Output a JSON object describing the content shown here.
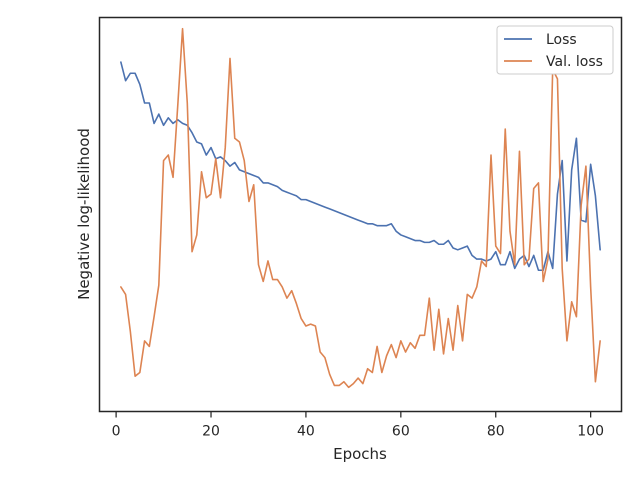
{
  "chart_data": {
    "type": "line",
    "xlabel": "Epochs",
    "ylabel": "Negative log-likelihood",
    "xlim": [
      -3.5,
      106.5
    ],
    "ylim": [
      -1.06,
      1.06
    ],
    "y_ticks_shown": false,
    "x_ticks": [
      0,
      20,
      40,
      60,
      80,
      100
    ],
    "legend_position": "upper-right",
    "grid": false,
    "series": [
      {
        "name": "Loss",
        "color": "#4c72b0",
        "x": [
          1,
          2,
          3,
          4,
          5,
          6,
          7,
          8,
          9,
          10,
          11,
          12,
          13,
          14,
          15,
          16,
          17,
          18,
          19,
          20,
          21,
          22,
          23,
          24,
          25,
          26,
          27,
          28,
          29,
          30,
          31,
          32,
          33,
          34,
          35,
          36,
          37,
          38,
          39,
          40,
          41,
          42,
          43,
          44,
          45,
          46,
          47,
          48,
          49,
          50,
          51,
          52,
          53,
          54,
          55,
          56,
          57,
          58,
          59,
          60,
          61,
          62,
          63,
          64,
          65,
          66,
          67,
          68,
          69,
          70,
          71,
          72,
          73,
          74,
          75,
          76,
          77,
          78,
          79,
          80,
          81,
          82,
          83,
          84,
          85,
          86,
          87,
          88,
          89,
          90,
          91,
          92,
          93,
          94,
          95,
          96,
          97,
          98,
          99,
          100,
          101,
          102
        ],
        "y": [
          0.82,
          0.72,
          0.76,
          0.76,
          0.7,
          0.6,
          0.6,
          0.49,
          0.54,
          0.48,
          0.52,
          0.49,
          0.51,
          0.49,
          0.48,
          0.44,
          0.39,
          0.38,
          0.32,
          0.36,
          0.3,
          0.31,
          0.29,
          0.26,
          0.28,
          0.24,
          0.23,
          0.22,
          0.21,
          0.2,
          0.17,
          0.17,
          0.16,
          0.15,
          0.13,
          0.12,
          0.11,
          0.1,
          0.08,
          0.08,
          0.07,
          0.06,
          0.05,
          0.04,
          0.03,
          0.02,
          0.01,
          0.0,
          -0.01,
          -0.02,
          -0.03,
          -0.04,
          -0.05,
          -0.05,
          -0.06,
          -0.06,
          -0.06,
          -0.05,
          -0.09,
          -0.11,
          -0.12,
          -0.13,
          -0.14,
          -0.14,
          -0.15,
          -0.15,
          -0.14,
          -0.16,
          -0.16,
          -0.14,
          -0.18,
          -0.19,
          -0.18,
          -0.17,
          -0.22,
          -0.24,
          -0.24,
          -0.25,
          -0.24,
          -0.2,
          -0.27,
          -0.27,
          -0.2,
          -0.29,
          -0.24,
          -0.22,
          -0.28,
          -0.22,
          -0.3,
          -0.3,
          -0.2,
          -0.29,
          0.11,
          0.29,
          -0.25,
          0.24,
          0.41,
          -0.03,
          -0.04,
          0.27,
          0.1,
          -0.19
        ]
      },
      {
        "name": "Val. loss",
        "color": "#dd8452",
        "x": [
          1,
          2,
          3,
          4,
          5,
          6,
          7,
          8,
          9,
          10,
          11,
          12,
          13,
          14,
          15,
          16,
          17,
          18,
          19,
          20,
          21,
          22,
          23,
          24,
          25,
          26,
          27,
          28,
          29,
          30,
          31,
          32,
          33,
          34,
          35,
          36,
          37,
          38,
          39,
          40,
          41,
          42,
          43,
          44,
          45,
          46,
          47,
          48,
          49,
          50,
          51,
          52,
          53,
          54,
          55,
          56,
          57,
          58,
          59,
          60,
          61,
          62,
          63,
          64,
          65,
          66,
          67,
          68,
          69,
          70,
          71,
          72,
          73,
          74,
          75,
          76,
          77,
          78,
          79,
          80,
          81,
          82,
          83,
          84,
          85,
          86,
          87,
          88,
          89,
          90,
          91,
          92,
          93,
          94,
          95,
          96,
          97,
          98,
          99,
          100,
          101,
          102
        ],
        "y": [
          -0.39,
          -0.43,
          -0.63,
          -0.87,
          -0.85,
          -0.68,
          -0.71,
          -0.55,
          -0.38,
          0.29,
          0.32,
          0.2,
          0.59,
          1.0,
          0.6,
          -0.2,
          -0.11,
          0.23,
          0.09,
          0.11,
          0.3,
          0.09,
          0.36,
          0.84,
          0.41,
          0.39,
          0.29,
          0.07,
          0.16,
          -0.27,
          -0.36,
          -0.25,
          -0.35,
          -0.35,
          -0.39,
          -0.45,
          -0.41,
          -0.48,
          -0.56,
          -0.6,
          -0.59,
          -0.6,
          -0.74,
          -0.77,
          -0.86,
          -0.92,
          -0.92,
          -0.9,
          -0.93,
          -0.91,
          -0.88,
          -0.91,
          -0.83,
          -0.85,
          -0.71,
          -0.85,
          -0.76,
          -0.7,
          -0.77,
          -0.68,
          -0.74,
          -0.69,
          -0.72,
          -0.65,
          -0.65,
          -0.45,
          -0.73,
          -0.51,
          -0.75,
          -0.56,
          -0.73,
          -0.49,
          -0.68,
          -0.43,
          -0.45,
          -0.39,
          -0.25,
          -0.28,
          0.32,
          -0.17,
          -0.21,
          0.46,
          -0.09,
          -0.27,
          0.34,
          -0.27,
          -0.24,
          0.14,
          0.17,
          -0.36,
          -0.24,
          0.78,
          0.73,
          -0.29,
          -0.68,
          -0.47,
          -0.55,
          0.05,
          0.26,
          -0.39,
          -0.9,
          -0.68
        ]
      }
    ]
  }
}
